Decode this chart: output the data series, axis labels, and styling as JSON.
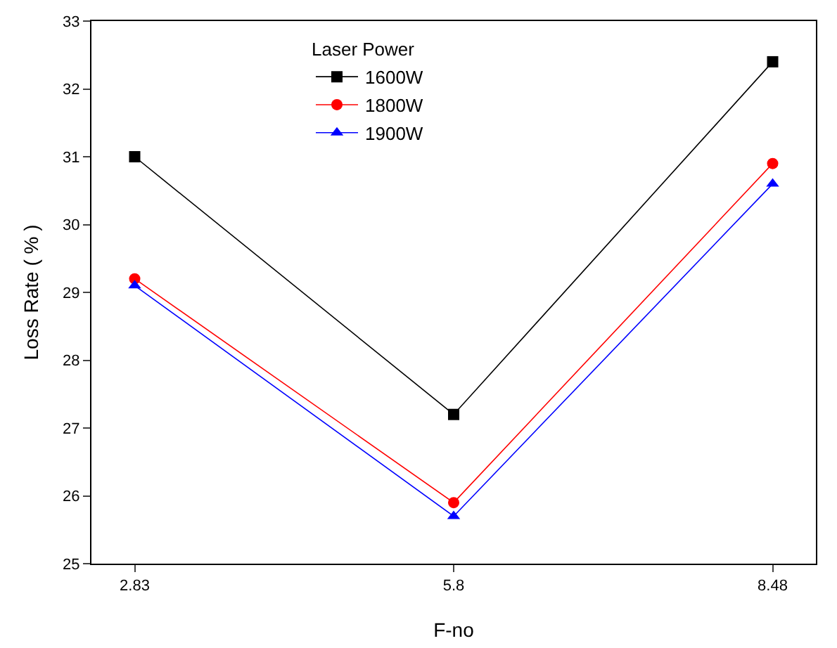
{
  "chart_data": {
    "type": "line",
    "xlabel": "F-no",
    "ylabel": "Loss Rate ( % )",
    "legend_title": "Laser Power",
    "legend": "top",
    "grid": false,
    "categories": [
      "2.83",
      "5.8",
      "8.48"
    ],
    "ylim": [
      25,
      33
    ],
    "yticks": [
      25,
      26,
      27,
      28,
      29,
      30,
      31,
      32,
      33
    ],
    "series": [
      {
        "name": "1600W",
        "color": "#000000",
        "marker": "square",
        "values": [
          31.0,
          27.2,
          32.4
        ]
      },
      {
        "name": "1800W",
        "color": "#ff0000",
        "marker": "circle",
        "values": [
          29.2,
          25.9,
          30.9
        ]
      },
      {
        "name": "1900W",
        "color": "#0000ff",
        "marker": "triangle",
        "values": [
          29.1,
          25.7,
          30.6
        ]
      }
    ]
  }
}
